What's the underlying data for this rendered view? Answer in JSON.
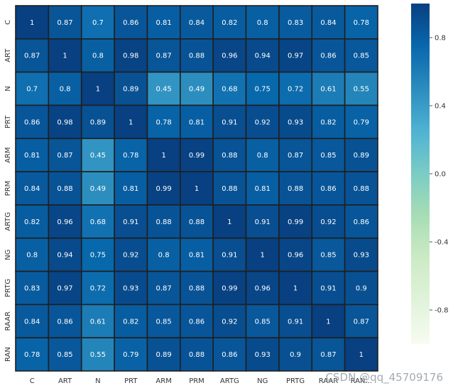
{
  "chart_data": {
    "type": "heatmap",
    "title": "",
    "xlabel": "",
    "ylabel": "",
    "x_categories": [
      "C",
      "ART",
      "N",
      "PRT",
      "ARM",
      "PRM",
      "ARTG",
      "NG",
      "PRTG",
      "RAAR",
      "RAN..."
    ],
    "y_categories": [
      "C",
      "ART",
      "N",
      "PRT",
      "ARM",
      "PRM",
      "ARTG",
      "NG",
      "PRTG",
      "RAAR",
      "RAN"
    ],
    "values": [
      [
        1,
        0.87,
        0.7,
        0.86,
        0.81,
        0.84,
        0.82,
        0.8,
        0.83,
        0.84,
        0.78
      ],
      [
        0.87,
        1,
        0.8,
        0.98,
        0.87,
        0.88,
        0.96,
        0.94,
        0.97,
        0.86,
        0.85
      ],
      [
        0.7,
        0.8,
        1,
        0.89,
        0.45,
        0.49,
        0.68,
        0.75,
        0.72,
        0.61,
        0.55
      ],
      [
        0.86,
        0.98,
        0.89,
        1,
        0.78,
        0.81,
        0.91,
        0.92,
        0.93,
        0.82,
        0.79
      ],
      [
        0.81,
        0.87,
        0.45,
        0.78,
        1,
        0.99,
        0.88,
        0.8,
        0.87,
        0.85,
        0.89
      ],
      [
        0.84,
        0.88,
        0.49,
        0.81,
        0.99,
        1,
        0.88,
        0.81,
        0.88,
        0.86,
        0.88
      ],
      [
        0.82,
        0.96,
        0.68,
        0.91,
        0.88,
        0.88,
        1,
        0.91,
        0.99,
        0.92,
        0.86
      ],
      [
        0.8,
        0.94,
        0.75,
        0.92,
        0.8,
        0.81,
        0.91,
        1,
        0.96,
        0.85,
        0.93
      ],
      [
        0.83,
        0.97,
        0.72,
        0.93,
        0.87,
        0.88,
        0.99,
        0.96,
        1,
        0.91,
        0.9
      ],
      [
        0.84,
        0.86,
        0.61,
        0.82,
        0.85,
        0.86,
        0.92,
        0.85,
        0.91,
        1,
        0.87
      ],
      [
        0.78,
        0.85,
        0.55,
        0.79,
        0.89,
        0.88,
        0.86,
        0.93,
        0.9,
        0.87,
        1
      ]
    ],
    "colorbar": {
      "range": [
        -1,
        1
      ],
      "ticks": [
        "0.8",
        "0.4",
        "0.0",
        "-0.4",
        "-0.8"
      ],
      "tick_values": [
        0.8,
        0.4,
        0.0,
        -0.4,
        -0.8
      ]
    },
    "colormap": [
      "#f7fcf0",
      "#e0f3db",
      "#ccebc5",
      "#a8ddb5",
      "#7bccc4",
      "#4eb3d3",
      "#2b8cbe",
      "#0868ac",
      "#084081"
    ],
    "gridline_color": "#1f1f1f"
  },
  "watermark": "CSDN @qq_45709176"
}
